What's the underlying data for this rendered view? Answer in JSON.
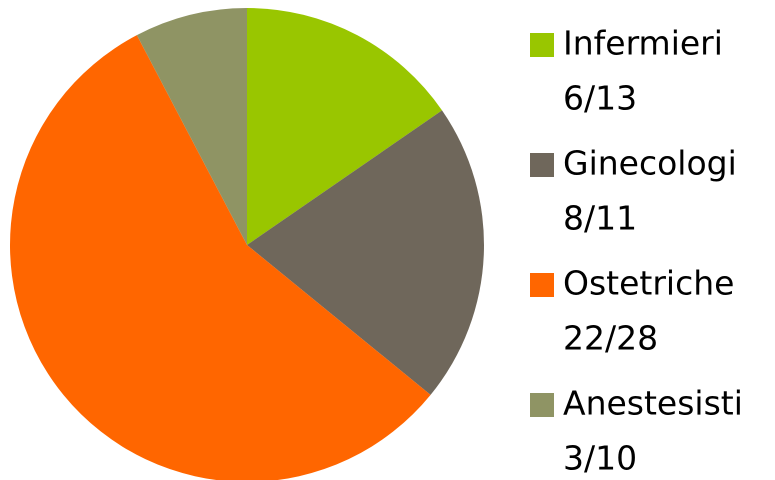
{
  "chart_data": {
    "type": "pie",
    "categories": [
      "Infermieri",
      "Ginecologi",
      "Ostetriche",
      "Anestesisti"
    ],
    "values": [
      6,
      8,
      22,
      3
    ],
    "value_labels": [
      "6/13",
      "8/11",
      "22/28",
      "3/10"
    ],
    "colors": [
      "#99c600",
      "#6f675b",
      "#ff6600",
      "#8f9464"
    ],
    "legend": "right"
  }
}
